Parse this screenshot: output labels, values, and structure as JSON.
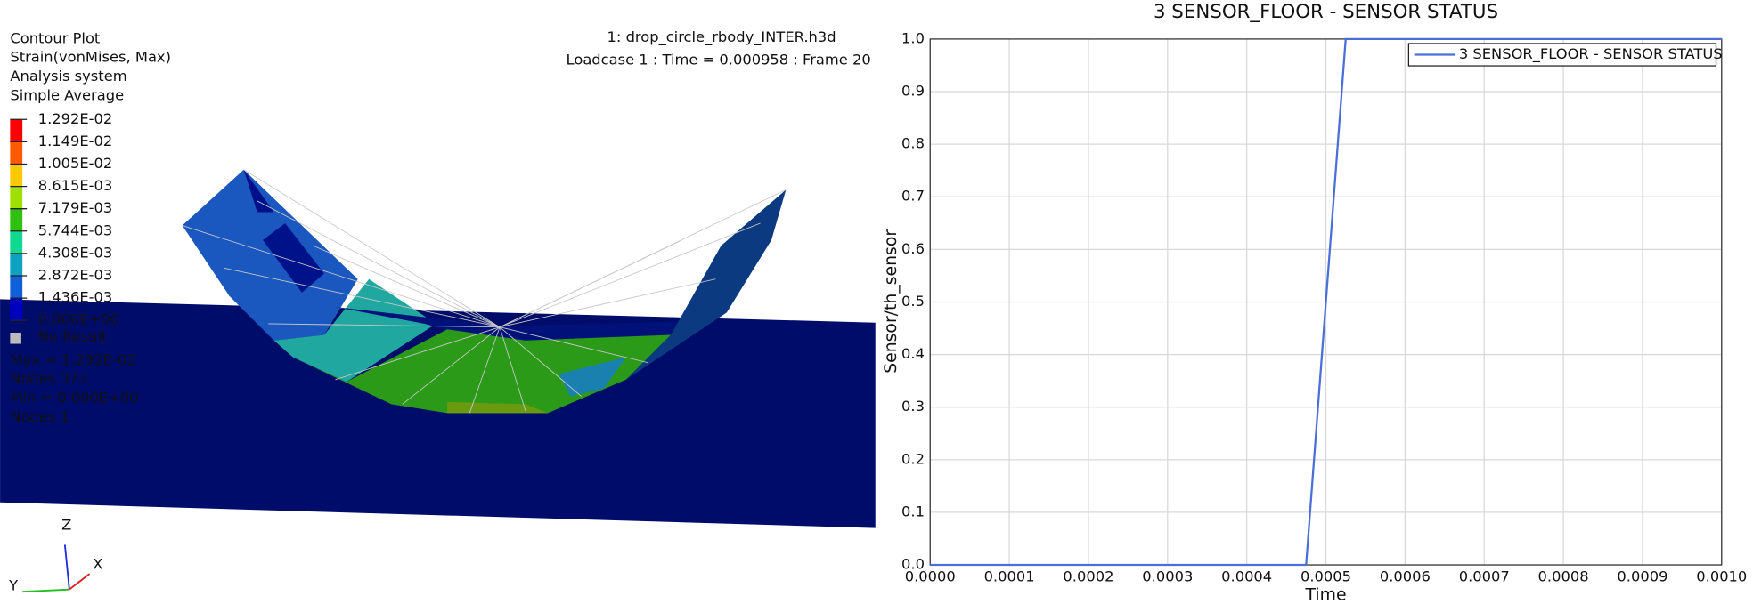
{
  "viewport": {
    "header": {
      "file": "1: drop_circle_rbody_INTER.h3d",
      "loadcase": "Loadcase 1 : Time = 0.000958 : Frame 20"
    },
    "info": [
      "Contour Plot",
      "Strain(vonMises, Max)",
      "Analysis system",
      "Simple Average"
    ],
    "legend": {
      "labels": [
        "1.292E-02",
        "1.149E-02",
        "1.005E-02",
        "8.615E-03",
        "7.179E-03",
        "5.744E-03",
        "4.308E-03",
        "2.872E-03",
        "1.436E-03",
        "0.000E+00"
      ],
      "colors": [
        "#ff0000",
        "#ff5a00",
        "#ffc800",
        "#a0e000",
        "#30c010",
        "#10d890",
        "#10a0c0",
        "#1060d8",
        "#0000c0"
      ],
      "no_result": "No Result"
    },
    "stats": [
      "Max = 1.292E-02",
      "Nodes 373",
      "Min = 0.000E+00",
      "Nodes 1"
    ],
    "triad": [
      "Z",
      "X",
      "Y"
    ]
  },
  "chart_data": {
    "type": "line",
    "title": "3 SENSOR_FLOOR - SENSOR STATUS",
    "x_label": "Time",
    "y_label": "Sensor/th_sensor",
    "x": [
      0,
      0.000475,
      0.000525,
      0.001
    ],
    "series": [
      {
        "name": "3 SENSOR_FLOOR - SENSOR STATUS",
        "color": "#4a6fd8",
        "values": [
          0,
          0,
          1,
          1
        ]
      }
    ],
    "xlim": [
      0,
      0.001
    ],
    "xticks": [
      {
        "value": 0,
        "label": "0.0000"
      },
      {
        "value": 0.0001,
        "label": "0.0001"
      },
      {
        "value": 0.0002,
        "label": "0.0002"
      },
      {
        "value": 0.0003,
        "label": "0.0003"
      },
      {
        "value": 0.0004,
        "label": "0.0004"
      },
      {
        "value": 0.0005,
        "label": "0.0005"
      },
      {
        "value": 0.0006,
        "label": "0.0006"
      },
      {
        "value": 0.0007,
        "label": "0.0007"
      },
      {
        "value": 0.0008,
        "label": "0.0008"
      },
      {
        "value": 0.0009,
        "label": "0.0009"
      },
      {
        "value": 0.001,
        "label": "0.0010"
      }
    ],
    "ylim": [
      0,
      1
    ],
    "yticks": [
      {
        "value": 0,
        "label": "0.0"
      },
      0.1,
      0.2,
      0.3,
      0.4,
      0.5,
      0.6,
      0.7,
      0.8,
      0.9,
      {
        "value": 1,
        "label": "1.0"
      }
    ],
    "grid": true,
    "legend": "top-right"
  }
}
